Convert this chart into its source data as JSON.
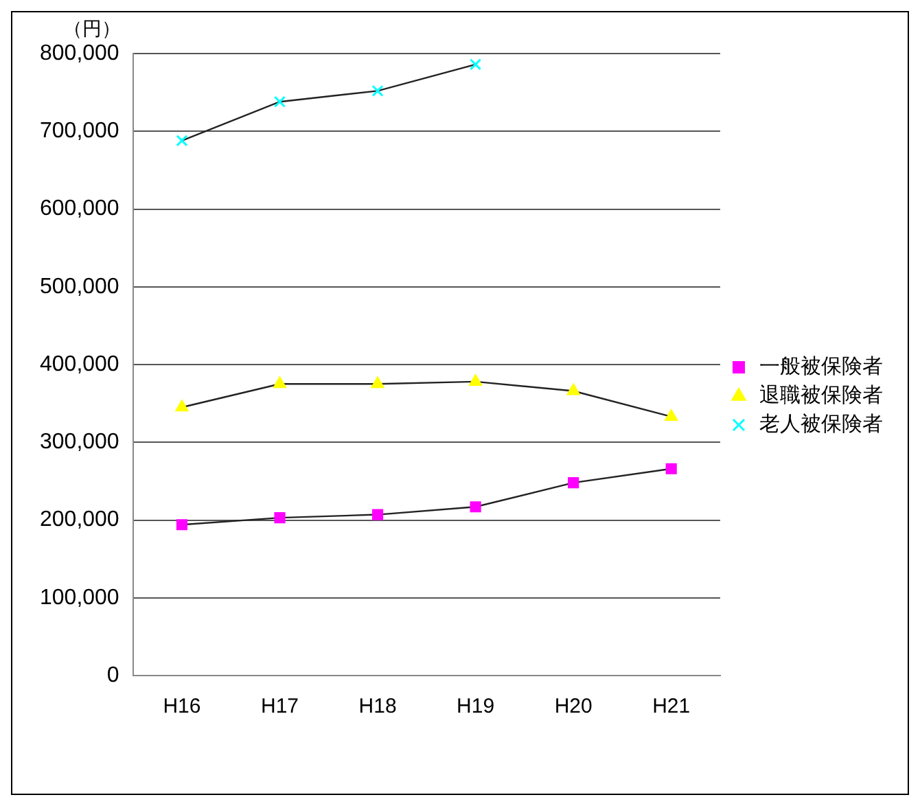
{
  "chart_data": {
    "type": "line",
    "ylabel": "（円）",
    "categories": [
      "H16",
      "H17",
      "H18",
      "H19",
      "H20",
      "H21"
    ],
    "series": [
      {
        "name": "一般被保険者",
        "color": "#ff00ff",
        "marker": "square",
        "values": [
          194000,
          203000,
          207000,
          217000,
          248000,
          266000
        ]
      },
      {
        "name": "退職被保険者",
        "color": "#ffff00",
        "marker": "triangle",
        "values": [
          345000,
          375000,
          375000,
          378000,
          366000,
          333000
        ]
      },
      {
        "name": "老人被保険者",
        "color": "#00ffff",
        "marker": "cross",
        "values": [
          688000,
          738000,
          752000,
          786000,
          null,
          null
        ]
      }
    ],
    "ylim": [
      0,
      800000
    ],
    "yticks": [
      0,
      {
        "value": 100000,
        "label": "100,000"
      },
      {
        "value": 200000,
        "label": "200,000"
      },
      {
        "value": 300000,
        "label": "300,000"
      },
      {
        "value": 400000,
        "label": "400,000"
      },
      {
        "value": 500000,
        "label": "500,000"
      },
      {
        "value": 600000,
        "label": "600,000"
      },
      {
        "value": 700000,
        "label": "700,000"
      },
      {
        "value": 800000,
        "label": "800,000"
      }
    ],
    "grid": "y",
    "legend": "right"
  }
}
